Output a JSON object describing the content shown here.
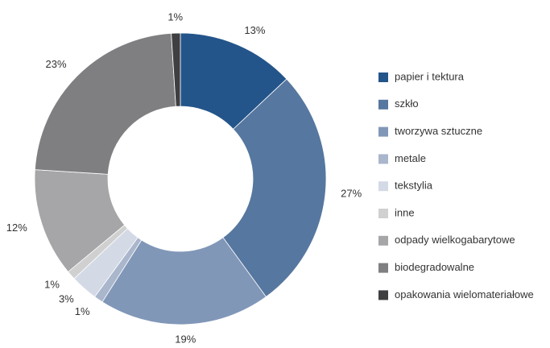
{
  "chart_data": {
    "type": "donut",
    "categories": [
      "papier i tektura",
      "szkło",
      "tworzywa sztuczne",
      "metale",
      "tekstylia",
      "inne",
      "odpady wielkogabarytowe",
      "biodegradowalne",
      "opakowania wielomateriałowe"
    ],
    "values": [
      13,
      27,
      19,
      1,
      3,
      1,
      12,
      23,
      1
    ],
    "value_labels": [
      "13%",
      "27%",
      "19%",
      "1%",
      "3%",
      "1%",
      "12%",
      "23%",
      "1%"
    ],
    "colors": [
      "#24558a",
      "#56779f",
      "#8197b8",
      "#a9b6cc",
      "#d3d9e5",
      "#d0d0d0",
      "#a6a6a8",
      "#7f7f82",
      "#3f3f41"
    ],
    "legend": "right"
  }
}
